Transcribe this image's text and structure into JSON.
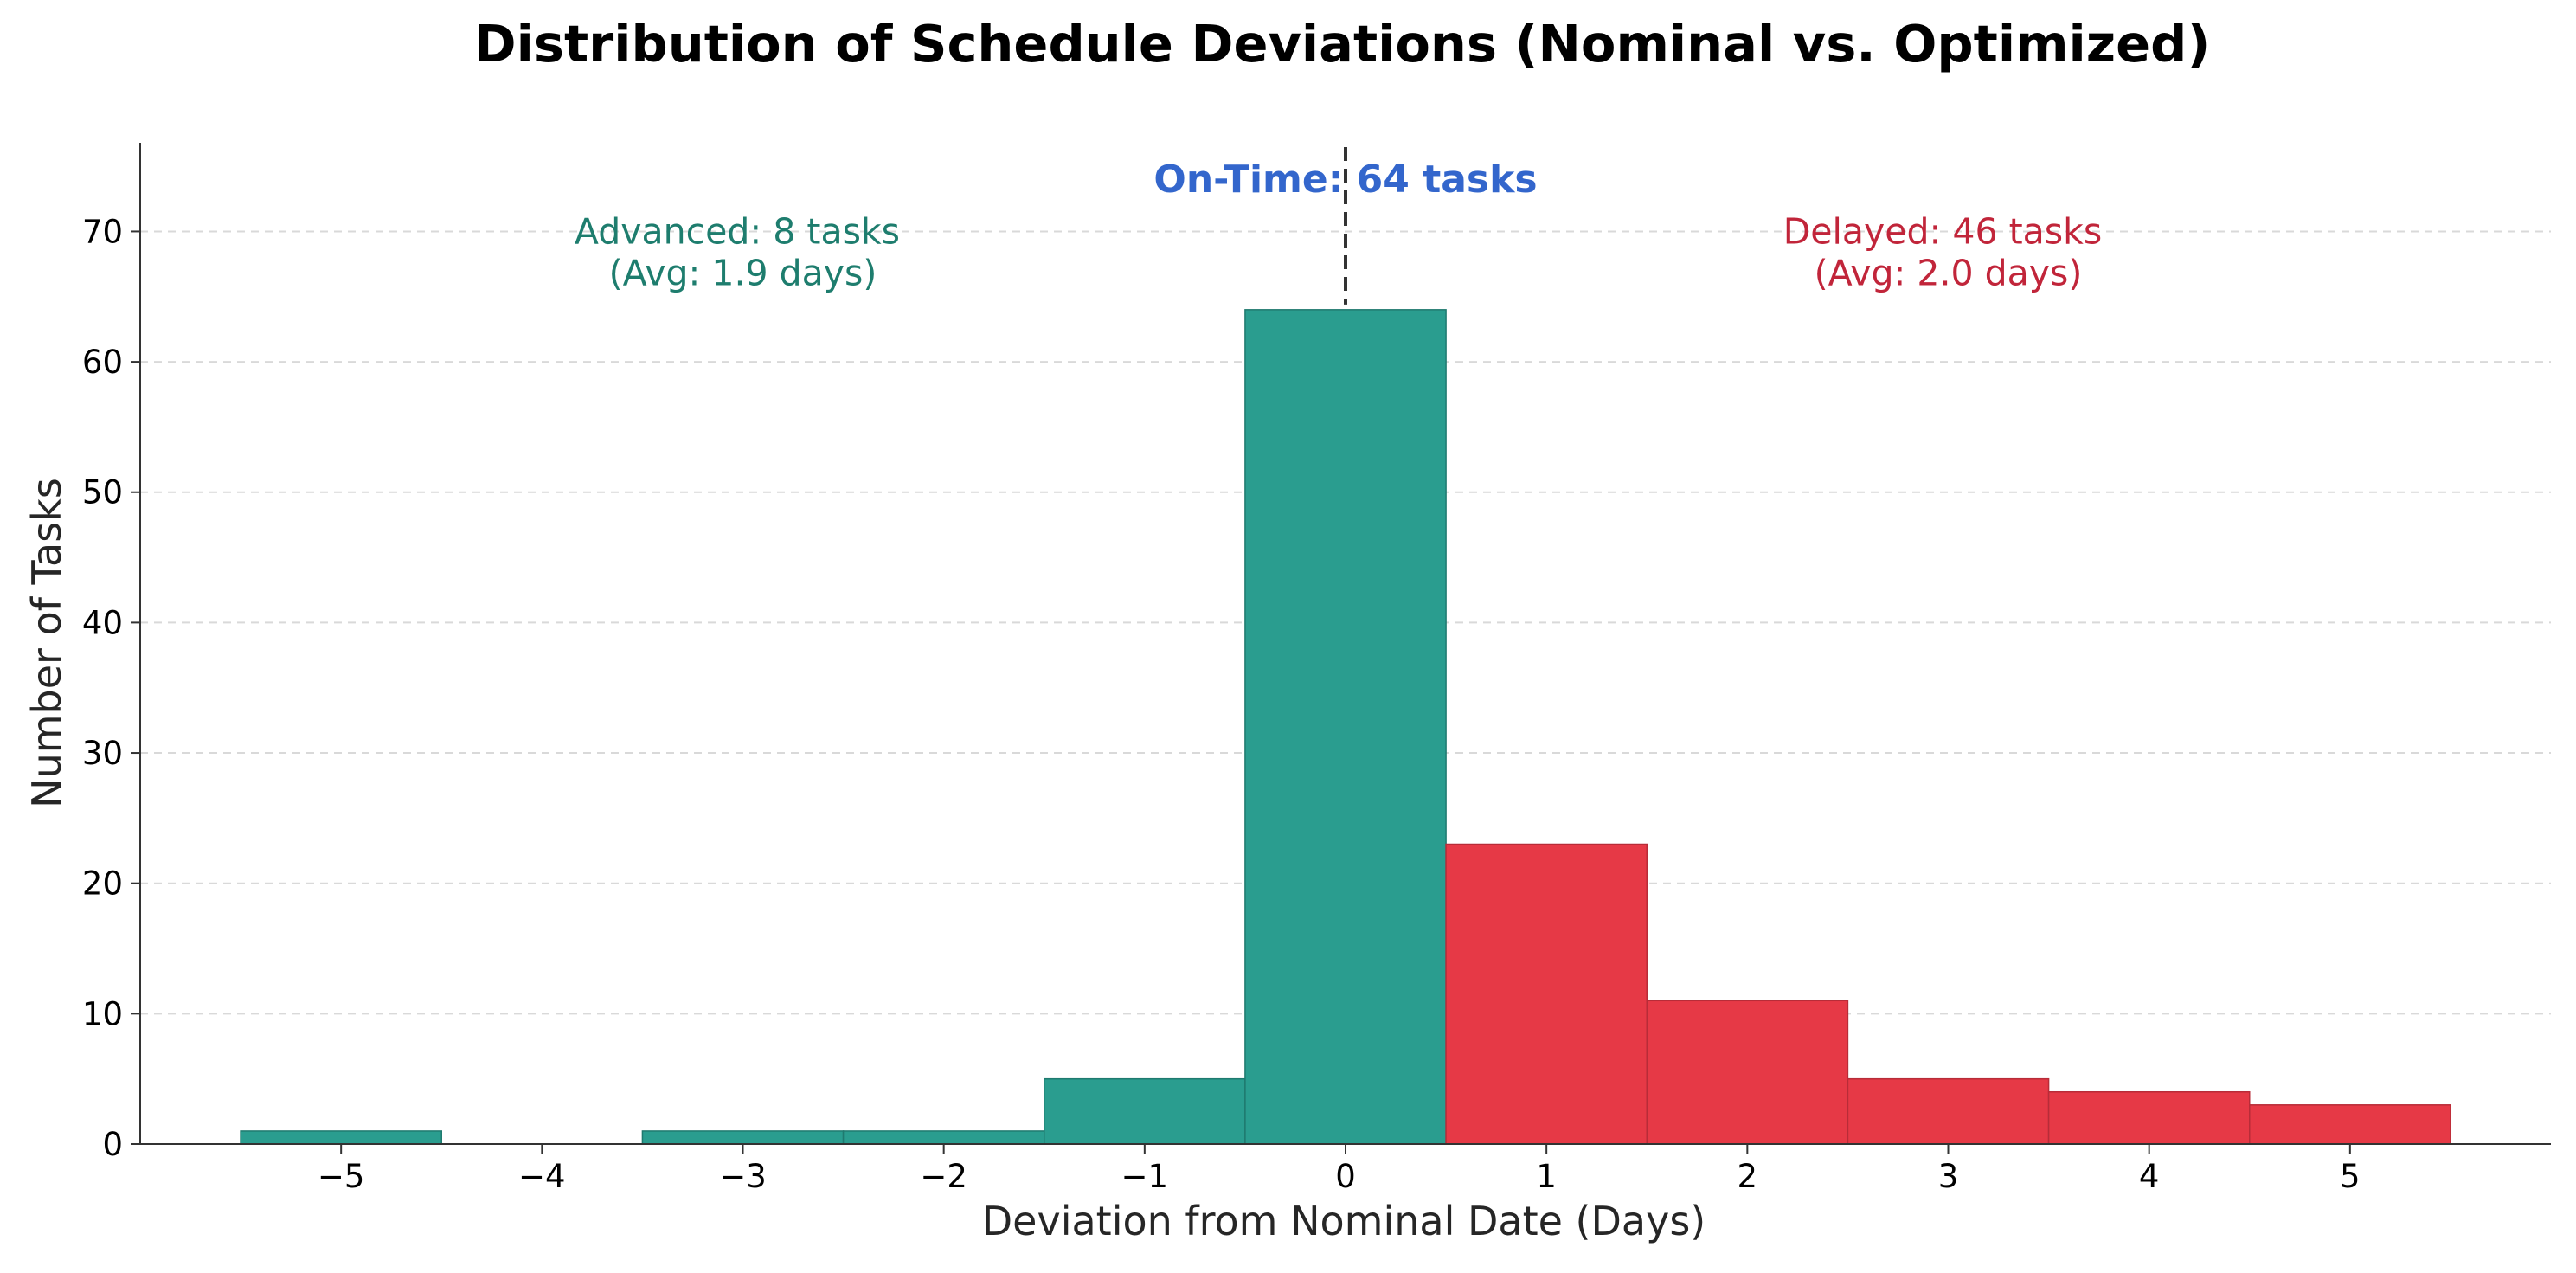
{
  "chart_data": {
    "type": "bar",
    "title": "Distribution of Schedule Deviations (Nominal vs. Optimized)",
    "xlabel": "Deviation from Nominal Date (Days)",
    "ylabel": "Number of Tasks",
    "x": [
      -5,
      -4,
      -3,
      -2,
      -1,
      0,
      1,
      2,
      3,
      4,
      5
    ],
    "x_tick_labels": [
      "−5",
      "−4",
      "−3",
      "−2",
      "−1",
      "0",
      "1",
      "2",
      "3",
      "4",
      "5"
    ],
    "values": [
      1,
      0,
      1,
      1,
      5,
      64,
      23,
      11,
      5,
      4,
      3
    ],
    "bar_groups": [
      "advanced",
      "advanced",
      "advanced",
      "advanced",
      "advanced",
      "on-time",
      "delayed",
      "delayed",
      "delayed",
      "delayed",
      "delayed"
    ],
    "xlim": [
      -6,
      6
    ],
    "ylim": [
      0,
      76.8
    ],
    "y_ticks": [
      0,
      10,
      20,
      30,
      40,
      50,
      60,
      70
    ],
    "grid": "horizontal-dashed",
    "reference_line": {
      "x": 0,
      "style": "dashed"
    },
    "annotations": {
      "on_time": {
        "text": "On-Time: 64 tasks",
        "x": 0,
        "y": 74
      },
      "advanced": {
        "line1": "Advanced: 8 tasks",
        "line2": "(Avg: 1.9 days)",
        "x": -3.0,
        "y": 70
      },
      "delayed": {
        "line1": "Delayed: 46 tasks",
        "line2": "(Avg: 2.0 days)",
        "x": 3.0,
        "y": 70
      }
    },
    "colors": {
      "advanced_fill": "#2a9d8f",
      "advanced_edge": "#1f7a6f",
      "delayed_fill": "#e63946",
      "delayed_edge": "#b82c38",
      "on_time_text": "#3366cc",
      "advanced_text": "#1e7d6e",
      "delayed_text": "#c1253a"
    }
  }
}
